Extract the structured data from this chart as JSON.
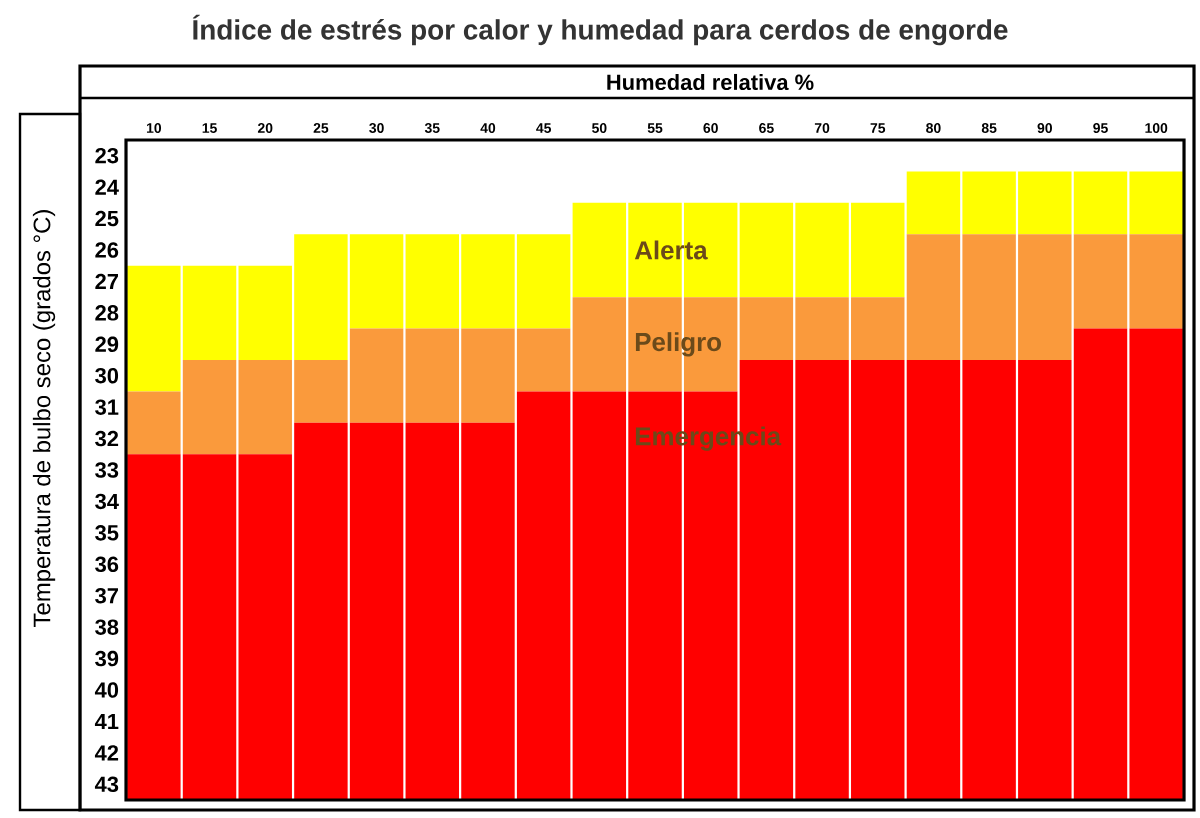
{
  "chart_data": {
    "type": "bar",
    "title": "Índice de estrés por calor y humedad para cerdos de engorde",
    "xlabel": "Humedad relativa %",
    "ylabel": "Temperatura de bulbo seco (grados °C)",
    "categories": [
      "10",
      "15",
      "20",
      "25",
      "30",
      "35",
      "40",
      "45",
      "50",
      "55",
      "60",
      "65",
      "70",
      "75",
      "80",
      "85",
      "90",
      "95",
      "100"
    ],
    "ylim": [
      43.5,
      22.5
    ],
    "yticks": [
      23,
      24,
      25,
      26,
      27,
      28,
      29,
      30,
      31,
      32,
      33,
      34,
      35,
      36,
      37,
      38,
      39,
      40,
      41,
      42,
      43
    ],
    "series": [
      {
        "name": "Alerta",
        "color": "#ffff00",
        "base": [
          26.5,
          26.5,
          26.5,
          25.5,
          25.5,
          25.5,
          25.5,
          25.5,
          24.5,
          24.5,
          24.5,
          24.5,
          24.5,
          24.5,
          23.5,
          23.5,
          23.5,
          23.5,
          23.5
        ],
        "values": [
          4,
          3,
          3,
          4,
          3,
          3,
          3,
          3,
          3,
          3,
          3,
          3,
          3,
          3,
          2,
          2,
          2,
          2,
          2
        ]
      },
      {
        "name": "Peligro",
        "color": "#fa9a3c",
        "base": [
          30.5,
          29.5,
          29.5,
          29.5,
          28.5,
          28.5,
          28.5,
          28.5,
          27.5,
          27.5,
          27.5,
          27.5,
          27.5,
          27.5,
          25.5,
          25.5,
          25.5,
          25.5,
          25.5
        ],
        "values": [
          2,
          3,
          3,
          2,
          3,
          3,
          3,
          2,
          3,
          3,
          3,
          2,
          2,
          2,
          4,
          4,
          4,
          3,
          3
        ]
      },
      {
        "name": "Emergencia",
        "color": "#ff0000",
        "base": [
          32.5,
          32.5,
          32.5,
          31.5,
          31.5,
          31.5,
          31.5,
          30.5,
          30.5,
          30.5,
          30.5,
          29.5,
          29.5,
          29.5,
          29.5,
          29.5,
          29.5,
          28.5,
          28.5
        ],
        "values": [
          11,
          11,
          11,
          12,
          12,
          12,
          12,
          13,
          13,
          13,
          13,
          14,
          14,
          14,
          14,
          14,
          14,
          15,
          15
        ]
      }
    ]
  }
}
